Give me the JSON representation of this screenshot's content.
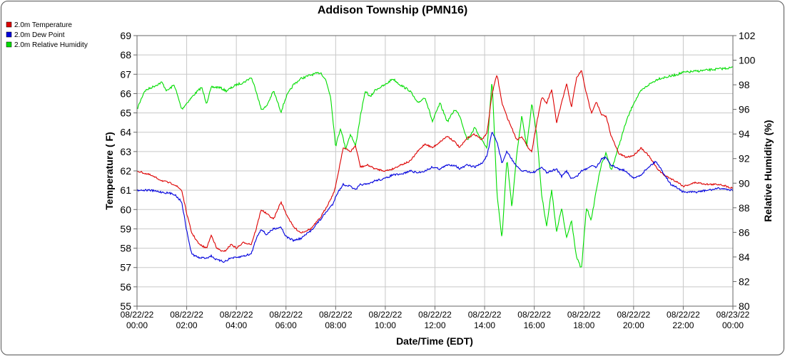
{
  "chart_data": {
    "type": "line",
    "title": "Addison Township (PMN16)",
    "xlabel": "Date/Time (EDT)",
    "ylabel": "Temperature ( F)",
    "y2label": "Relative Humidity (%)",
    "ylim": [
      55,
      69
    ],
    "y2lim": [
      80,
      102
    ],
    "xlim": [
      0,
      24
    ],
    "grid": true,
    "legend_position": "top-left",
    "x_ticks": [
      {
        "date": "08/22/22",
        "time": "00:00"
      },
      {
        "date": "08/22/22",
        "time": "02:00"
      },
      {
        "date": "08/22/22",
        "time": "04:00"
      },
      {
        "date": "08/22/22",
        "time": "06:00"
      },
      {
        "date": "08/22/22",
        "time": "08:00"
      },
      {
        "date": "08/22/22",
        "time": "10:00"
      },
      {
        "date": "08/22/22",
        "time": "12:00"
      },
      {
        "date": "08/22/22",
        "time": "14:00"
      },
      {
        "date": "08/22/22",
        "time": "16:00"
      },
      {
        "date": "08/22/22",
        "time": "18:00"
      },
      {
        "date": "08/22/22",
        "time": "20:00"
      },
      {
        "date": "08/22/22",
        "time": "22:00"
      },
      {
        "date": "08/23/22",
        "time": "00:00"
      }
    ],
    "y_ticks": [
      55,
      56,
      57,
      58,
      59,
      60,
      61,
      62,
      63,
      64,
      65,
      66,
      67,
      68,
      69
    ],
    "y2_ticks": [
      80,
      82,
      84,
      86,
      88,
      90,
      92,
      94,
      96,
      98,
      100,
      102
    ],
    "series": [
      {
        "name": "2.0m Temperature",
        "color": "#dd0000",
        "axis": "left",
        "x": [
          0,
          0.5,
          1,
          1.5,
          1.8,
          2,
          2.2,
          2.5,
          2.8,
          3,
          3.2,
          3.5,
          3.8,
          4,
          4.3,
          4.6,
          4.8,
          5,
          5.2,
          5.5,
          5.8,
          6,
          6.3,
          6.6,
          7,
          7.4,
          7.7,
          7.9,
          8,
          8.3,
          8.6,
          8.8,
          9,
          9.3,
          9.6,
          10,
          10.3,
          10.6,
          11,
          11.3,
          11.6,
          11.9,
          12.2,
          12.5,
          12.8,
          13,
          13.3,
          13.6,
          13.9,
          14.1,
          14.3,
          14.5,
          14.7,
          14.9,
          15.1,
          15.3,
          15.5,
          15.7,
          15.9,
          16.1,
          16.3,
          16.5,
          16.7,
          16.9,
          17.1,
          17.3,
          17.5,
          17.7,
          17.9,
          18.1,
          18.3,
          18.5,
          18.7,
          18.9,
          19.1,
          19.4,
          19.7,
          20,
          20.3,
          20.6,
          20.9,
          21.2,
          21.5,
          21.8,
          22,
          22.5,
          23,
          23.5,
          24
        ],
        "values": [
          62.0,
          61.8,
          61.5,
          61.3,
          61.0,
          59.8,
          58.8,
          58.2,
          58.0,
          58.7,
          58.0,
          57.8,
          58.2,
          58.0,
          58.3,
          58.2,
          59.0,
          60.0,
          59.8,
          59.5,
          60.4,
          59.8,
          59.1,
          58.8,
          59.0,
          59.6,
          60.3,
          60.8,
          61.2,
          63.2,
          63.0,
          63.3,
          62.2,
          62.3,
          62.1,
          62.0,
          62.1,
          62.3,
          62.5,
          63.0,
          63.4,
          63.2,
          63.5,
          63.8,
          63.5,
          63.2,
          63.7,
          63.9,
          63.6,
          64.0,
          66.0,
          67.0,
          65.5,
          64.8,
          64.2,
          63.6,
          63.8,
          63.3,
          63.0,
          64.5,
          65.8,
          65.5,
          66.2,
          64.5,
          65.5,
          66.5,
          65.3,
          66.8,
          67.2,
          66.0,
          65.0,
          65.6,
          64.9,
          64.8,
          63.8,
          62.9,
          62.7,
          62.8,
          63.2,
          62.8,
          62.2,
          61.8,
          61.6,
          61.4,
          61.2,
          61.4,
          61.3,
          61.3,
          61.1
        ]
      },
      {
        "name": "2.0m Dew Point",
        "color": "#0000dd",
        "axis": "left",
        "x": [
          0,
          0.5,
          1,
          1.5,
          1.8,
          2,
          2.2,
          2.5,
          2.8,
          3,
          3.2,
          3.5,
          3.8,
          4,
          4.3,
          4.6,
          4.8,
          5,
          5.2,
          5.5,
          5.8,
          6,
          6.3,
          6.6,
          7,
          7.4,
          7.7,
          7.9,
          8,
          8.3,
          8.6,
          8.8,
          9,
          9.3,
          9.6,
          10,
          10.3,
          10.6,
          11,
          11.3,
          11.6,
          11.9,
          12.2,
          12.5,
          12.8,
          13,
          13.3,
          13.6,
          13.9,
          14.1,
          14.3,
          14.5,
          14.7,
          14.9,
          15.1,
          15.3,
          15.5,
          15.7,
          15.9,
          16.1,
          16.3,
          16.5,
          16.7,
          16.9,
          17.1,
          17.3,
          17.5,
          17.7,
          17.9,
          18.1,
          18.3,
          18.5,
          18.7,
          18.9,
          19.1,
          19.4,
          19.7,
          20,
          20.3,
          20.6,
          20.9,
          21.2,
          21.5,
          21.8,
          22,
          22.5,
          23,
          23.5,
          24
        ],
        "values": [
          61.0,
          61.0,
          60.9,
          60.8,
          60.4,
          58.9,
          57.7,
          57.5,
          57.5,
          57.6,
          57.4,
          57.3,
          57.5,
          57.5,
          57.6,
          57.7,
          58.5,
          59.0,
          58.7,
          59.0,
          59.1,
          58.6,
          58.4,
          58.5,
          58.9,
          59.5,
          60.0,
          60.3,
          60.7,
          61.3,
          61.2,
          61.0,
          61.3,
          61.3,
          61.5,
          61.6,
          61.8,
          61.8,
          62.0,
          61.9,
          62.0,
          62.2,
          62.1,
          62.3,
          62.3,
          62.1,
          62.3,
          62.2,
          62.4,
          62.8,
          64.0,
          63.5,
          62.4,
          63.0,
          62.6,
          62.2,
          62.0,
          62.0,
          61.9,
          62.0,
          62.2,
          61.9,
          62.0,
          62.1,
          61.7,
          62.0,
          61.6,
          61.7,
          62.0,
          62.1,
          62.3,
          62.2,
          62.6,
          62.7,
          62.3,
          62.1,
          62.0,
          61.6,
          61.8,
          62.2,
          62.5,
          61.9,
          61.3,
          61.1,
          60.9,
          60.9,
          61.0,
          61.1,
          61.0
        ]
      },
      {
        "name": "2.0m Relative Humidity",
        "color": "#00dd00",
        "axis": "right",
        "x": [
          0,
          0.3,
          0.6,
          1,
          1.2,
          1.5,
          1.8,
          2,
          2.3,
          2.6,
          2.8,
          3,
          3.3,
          3.6,
          4,
          4.3,
          4.6,
          4.8,
          5,
          5.2,
          5.5,
          5.8,
          6,
          6.3,
          6.6,
          7,
          7.4,
          7.6,
          7.8,
          8,
          8.2,
          8.4,
          8.6,
          8.8,
          9,
          9.2,
          9.4,
          9.6,
          10,
          10.3,
          10.6,
          11,
          11.3,
          11.6,
          11.9,
          12.2,
          12.5,
          12.8,
          13,
          13.3,
          13.6,
          13.9,
          14.1,
          14.3,
          14.5,
          14.7,
          14.9,
          15.1,
          15.3,
          15.5,
          15.7,
          15.9,
          16.1,
          16.3,
          16.5,
          16.7,
          16.9,
          17.1,
          17.3,
          17.5,
          17.7,
          17.9,
          18.1,
          18.3,
          18.5,
          18.7,
          18.9,
          19.1,
          19.4,
          19.7,
          20,
          20.3,
          20.6,
          21,
          21.5,
          22,
          22.5,
          23,
          23.5,
          24
        ],
        "values": [
          96.0,
          97.5,
          97.8,
          98.2,
          97.5,
          98.0,
          96.0,
          96.5,
          97.2,
          97.8,
          96.5,
          97.8,
          97.8,
          97.5,
          98.0,
          98.2,
          98.6,
          97.5,
          96.0,
          96.2,
          97.5,
          95.8,
          97.0,
          98.0,
          98.5,
          98.8,
          99.0,
          98.4,
          97.0,
          93.0,
          94.5,
          92.8,
          94.0,
          93.0,
          95.5,
          97.5,
          97.0,
          97.6,
          98.0,
          98.5,
          98.0,
          97.5,
          96.5,
          97.0,
          95.0,
          96.5,
          95.0,
          96.0,
          95.5,
          93.5,
          94.5,
          93.5,
          92.8,
          98.5,
          89.0,
          85.5,
          92.0,
          88.0,
          92.5,
          95.5,
          93.0,
          96.5,
          94.0,
          89.0,
          86.5,
          89.5,
          86.0,
          88.0,
          85.5,
          87.0,
          84.0,
          83.0,
          88.0,
          87.0,
          89.5,
          91.5,
          92.5,
          91.0,
          93.0,
          95.0,
          96.5,
          97.5,
          98.0,
          98.5,
          98.7,
          99.0,
          99.1,
          99.2,
          99.3,
          99.4
        ]
      }
    ]
  }
}
